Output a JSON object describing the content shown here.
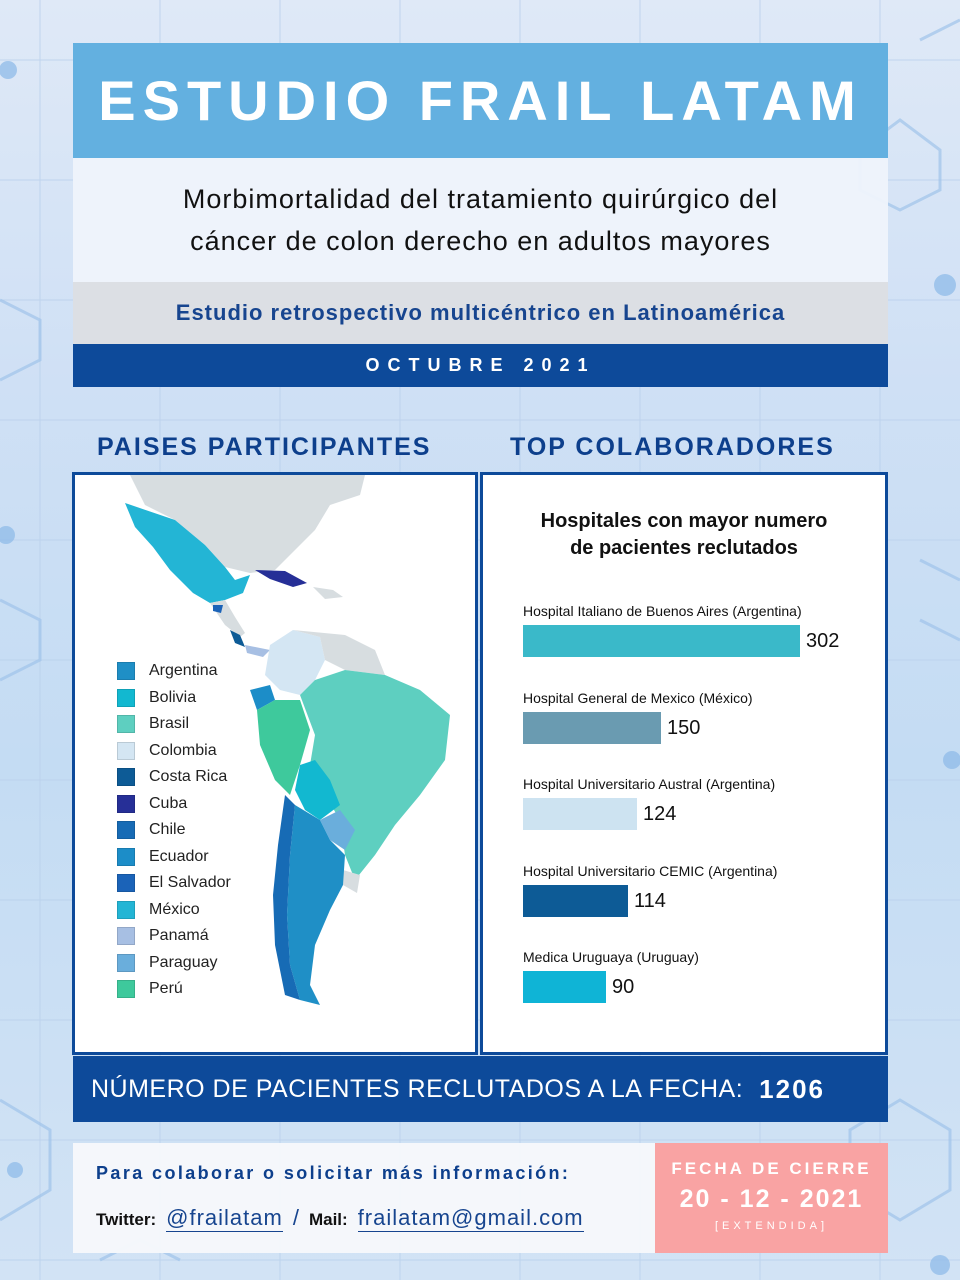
{
  "header": {
    "title": "ESTUDIO FRAIL LATAM",
    "subtitle_line1": "Morbimortalidad del tratamiento quirúrgico del",
    "subtitle_line2": "cáncer de colon derecho en adultos mayores",
    "study_type": "Estudio retrospectivo multicéntrico en Latinoamérica",
    "date": "OCTUBRE 2021"
  },
  "sections": {
    "countries_title": "PAISES PARTICIPANTES",
    "collaborators_title": "TOP COLABORADORES"
  },
  "legend": [
    {
      "label": "Argentina",
      "color": "#1f8fc6"
    },
    {
      "label": "Bolivia",
      "color": "#12b8d0"
    },
    {
      "label": "Brasil",
      "color": "#5ecfc0"
    },
    {
      "label": "Colombia",
      "color": "#d4e6f3"
    },
    {
      "label": "Costa Rica",
      "color": "#0d5b96"
    },
    {
      "label": "Cuba",
      "color": "#262f97"
    },
    {
      "label": "Chile",
      "color": "#176bb5"
    },
    {
      "label": "Ecuador",
      "color": "#1c8dc8"
    },
    {
      "label": "El Salvador",
      "color": "#1b63b8"
    },
    {
      "label": "México",
      "color": "#23b5d5"
    },
    {
      "label": "Panamá",
      "color": "#a7bfe3"
    },
    {
      "label": "Paraguay",
      "color": "#6aaedc"
    },
    {
      "label": "Perú",
      "color": "#3ec99c"
    }
  ],
  "chart_data": {
    "type": "bar",
    "title_line1": "Hospitales con mayor numero",
    "title_line2": "de pacientes reclutados",
    "categories": [
      "Hospital Italiano de Buenos Aires (Argentina)",
      "Hospital General de Mexico (México)",
      "Hospital Universitario Austral (Argentina)",
      "Hospital Universitario CEMIC (Argentina)",
      "Medica Uruguaya (Uruguay)"
    ],
    "values": [
      302,
      150,
      124,
      114,
      90
    ],
    "colors": [
      "#3ab9c9",
      "#6a9bb1",
      "#cde3f1",
      "#0d5b96",
      "#0fb4d6"
    ]
  },
  "patients": {
    "label": "NÚMERO DE PACIENTES RECLUTADOS A LA FECHA:",
    "value": "1206"
  },
  "contact": {
    "intro": "Para colaborar o solicitar más información:",
    "twitter_label": "Twitter:",
    "twitter_handle": "@frailatam",
    "separator": "/",
    "mail_label": "Mail:",
    "mail_address": "frailatam@gmail.com"
  },
  "closing": {
    "title": "FECHA DE CIERRE",
    "date": "20 - 12 - 2021",
    "note": "[EXTENDIDA]"
  }
}
